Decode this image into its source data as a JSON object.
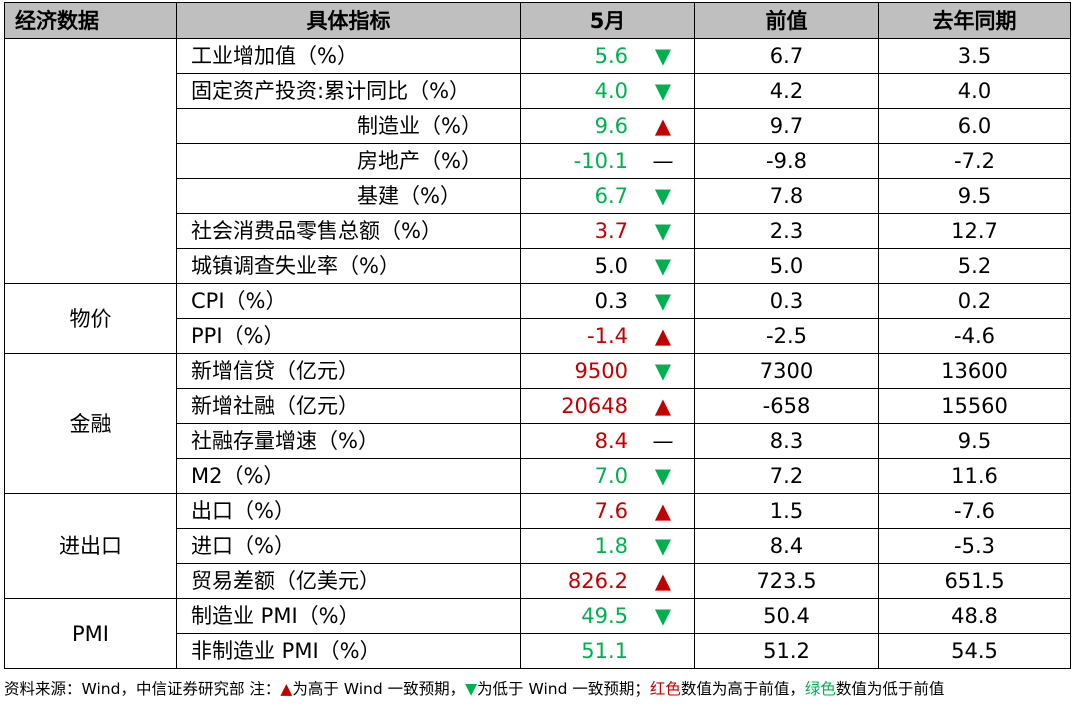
{
  "headers": [
    "经济数据",
    "具体指标",
    "5月",
    "前值",
    "去年同期"
  ],
  "groups": [
    {
      "category": "",
      "rows": [
        {
          "indicator": "工业增加值（%）",
          "sub": false,
          "value": "5.6",
          "color": "#00b050",
          "marker": "▼",
          "prev": "6.7",
          "yoy": "3.5"
        },
        {
          "indicator": "固定资产投资:累计同比（%）",
          "sub": false,
          "value": "4.0",
          "color": "#00b050",
          "marker": "▼",
          "prev": "4.2",
          "yoy": "4.0"
        },
        {
          "indicator": "制造业（%）",
          "sub": true,
          "value": "9.6",
          "color": "#00b050",
          "marker": "▲",
          "prev": "9.7",
          "yoy": "6.0"
        },
        {
          "indicator": "房地产（%）",
          "sub": true,
          "value": "-10.1",
          "color": "#00b050",
          "marker": "—",
          "prev": "-9.8",
          "yoy": "-7.2"
        },
        {
          "indicator": "基建（%）",
          "sub": true,
          "value": "6.7",
          "color": "#00b050",
          "marker": "▼",
          "prev": "7.8",
          "yoy": "9.5"
        },
        {
          "indicator": "社会消费品零售总额（%）",
          "sub": false,
          "value": "3.7",
          "color": "#c00000",
          "marker": "▼",
          "prev": "2.3",
          "yoy": "12.7"
        },
        {
          "indicator": "城镇调查失业率（%）",
          "sub": false,
          "value": "5.0",
          "color": "#000000",
          "marker": "▼",
          "prev": "5.0",
          "yoy": "5.2"
        }
      ]
    },
    {
      "category": "物价",
      "rows": [
        {
          "indicator": "CPI（%）",
          "sub": false,
          "value": "0.3",
          "color": "#000000",
          "marker": "▼",
          "prev": "0.3",
          "yoy": "0.2"
        },
        {
          "indicator": "PPI（%）",
          "sub": false,
          "value": "-1.4",
          "color": "#c00000",
          "marker": "▲",
          "prev": "-2.5",
          "yoy": "-4.6"
        }
      ]
    },
    {
      "category": "金融",
      "rows": [
        {
          "indicator": "新增信贷（亿元）",
          "sub": false,
          "value": "9500",
          "color": "#c00000",
          "marker": "▼",
          "prev": "7300",
          "yoy": "13600"
        },
        {
          "indicator": "新增社融（亿元）",
          "sub": false,
          "value": "20648",
          "color": "#c00000",
          "marker": "▲",
          "prev": "-658",
          "yoy": "15560"
        },
        {
          "indicator": "社融存量增速（%）",
          "sub": false,
          "value": "8.4",
          "color": "#c00000",
          "marker": "—",
          "prev": "8.3",
          "yoy": "9.5"
        },
        {
          "indicator": "M2（%）",
          "sub": false,
          "value": "7.0",
          "color": "#00b050",
          "marker": "▼",
          "prev": "7.2",
          "yoy": "11.6"
        }
      ]
    },
    {
      "category": "进出口",
      "rows": [
        {
          "indicator": "出口（%）",
          "sub": false,
          "value": "7.6",
          "color": "#c00000",
          "marker": "▲",
          "prev": "1.5",
          "yoy": "-7.6"
        },
        {
          "indicator": "进口（%）",
          "sub": false,
          "value": "1.8",
          "color": "#00b050",
          "marker": "▼",
          "prev": "8.4",
          "yoy": "-5.3"
        },
        {
          "indicator": "贸易差额（亿美元）",
          "sub": false,
          "value": "826.2",
          "color": "#c00000",
          "marker": "▲",
          "prev": "723.5",
          "yoy": "651.5"
        }
      ]
    },
    {
      "category": "PMI",
      "rows": [
        {
          "indicator": "制造业 PMI（%）",
          "sub": false,
          "value": "49.5",
          "color": "#00b050",
          "marker": "▼",
          "prev": "50.4",
          "yoy": "48.8"
        },
        {
          "indicator": "非制造业 PMI（%）",
          "sub": false,
          "value": "51.1",
          "color": "#00b050",
          "marker": "",
          "prev": "51.2",
          "yoy": "54.5"
        }
      ]
    }
  ],
  "marker_colors": {
    "▲": "#c00000",
    "▼": "#00b050",
    "—": "#000000"
  },
  "footnote": {
    "p1": "资料来源：Wind，中信证券研究部 注：",
    "up_mark": "▲",
    "p2": "为高于 Wind 一致预期，",
    "down_mark": "▼",
    "p3": "为低于 Wind 一致预期；",
    "red_word": "红色",
    "p4": "数值为高于前值，",
    "green_word": "绿色",
    "p5": "数值为低于前值"
  }
}
